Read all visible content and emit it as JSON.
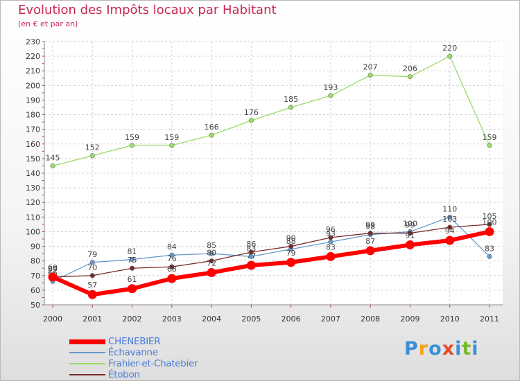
{
  "header": {
    "title": "Evolution des Impôts locaux par Habitant",
    "subtitle": "(en € et par an)"
  },
  "logo": {
    "text": "Proxiti",
    "colors": [
      "#3a8fd8",
      "#f2a414",
      "#3a8fd8",
      "#e8492d",
      "#3a8fd8",
      "#7ab82a",
      "#3a8fd8"
    ]
  },
  "chart_data": {
    "type": "line",
    "title": "Evolution des Impôts locaux par Habitant",
    "subtitle": "(en € et par an)",
    "xlabel": "",
    "ylabel": "",
    "categories": [
      "2000",
      "2001",
      "2002",
      "2003",
      "2004",
      "2005",
      "2006",
      "2007",
      "2008",
      "2009",
      "2010",
      "2011"
    ],
    "ylim": [
      50,
      230
    ],
    "yticks": [
      50,
      60,
      70,
      80,
      90,
      100,
      110,
      120,
      130,
      140,
      150,
      160,
      170,
      180,
      190,
      200,
      210,
      220,
      230
    ],
    "grid": true,
    "legend_position": "bottom-left",
    "series": [
      {
        "name": "CHENEBIER",
        "color": "#ff0000",
        "values": [
          69,
          57,
          61,
          68,
          72,
          77,
          79,
          83,
          87,
          91,
          94,
          100
        ]
      },
      {
        "name": "Échavanne",
        "color": "#6699cc",
        "values": [
          66,
          79,
          81,
          84,
          85,
          83,
          88,
          93,
          98,
          100,
          110,
          83
        ]
      },
      {
        "name": "Frahier-et-Chatebier",
        "color": "#99dd66",
        "values": [
          145,
          152,
          159,
          159,
          166,
          176,
          185,
          193,
          207,
          206,
          220,
          159
        ]
      },
      {
        "name": "Étobon",
        "color": "#7a2a2a",
        "values": [
          69,
          70,
          75,
          76,
          80,
          86,
          90,
          96,
          99,
          99,
          103,
          105
        ]
      }
    ]
  }
}
